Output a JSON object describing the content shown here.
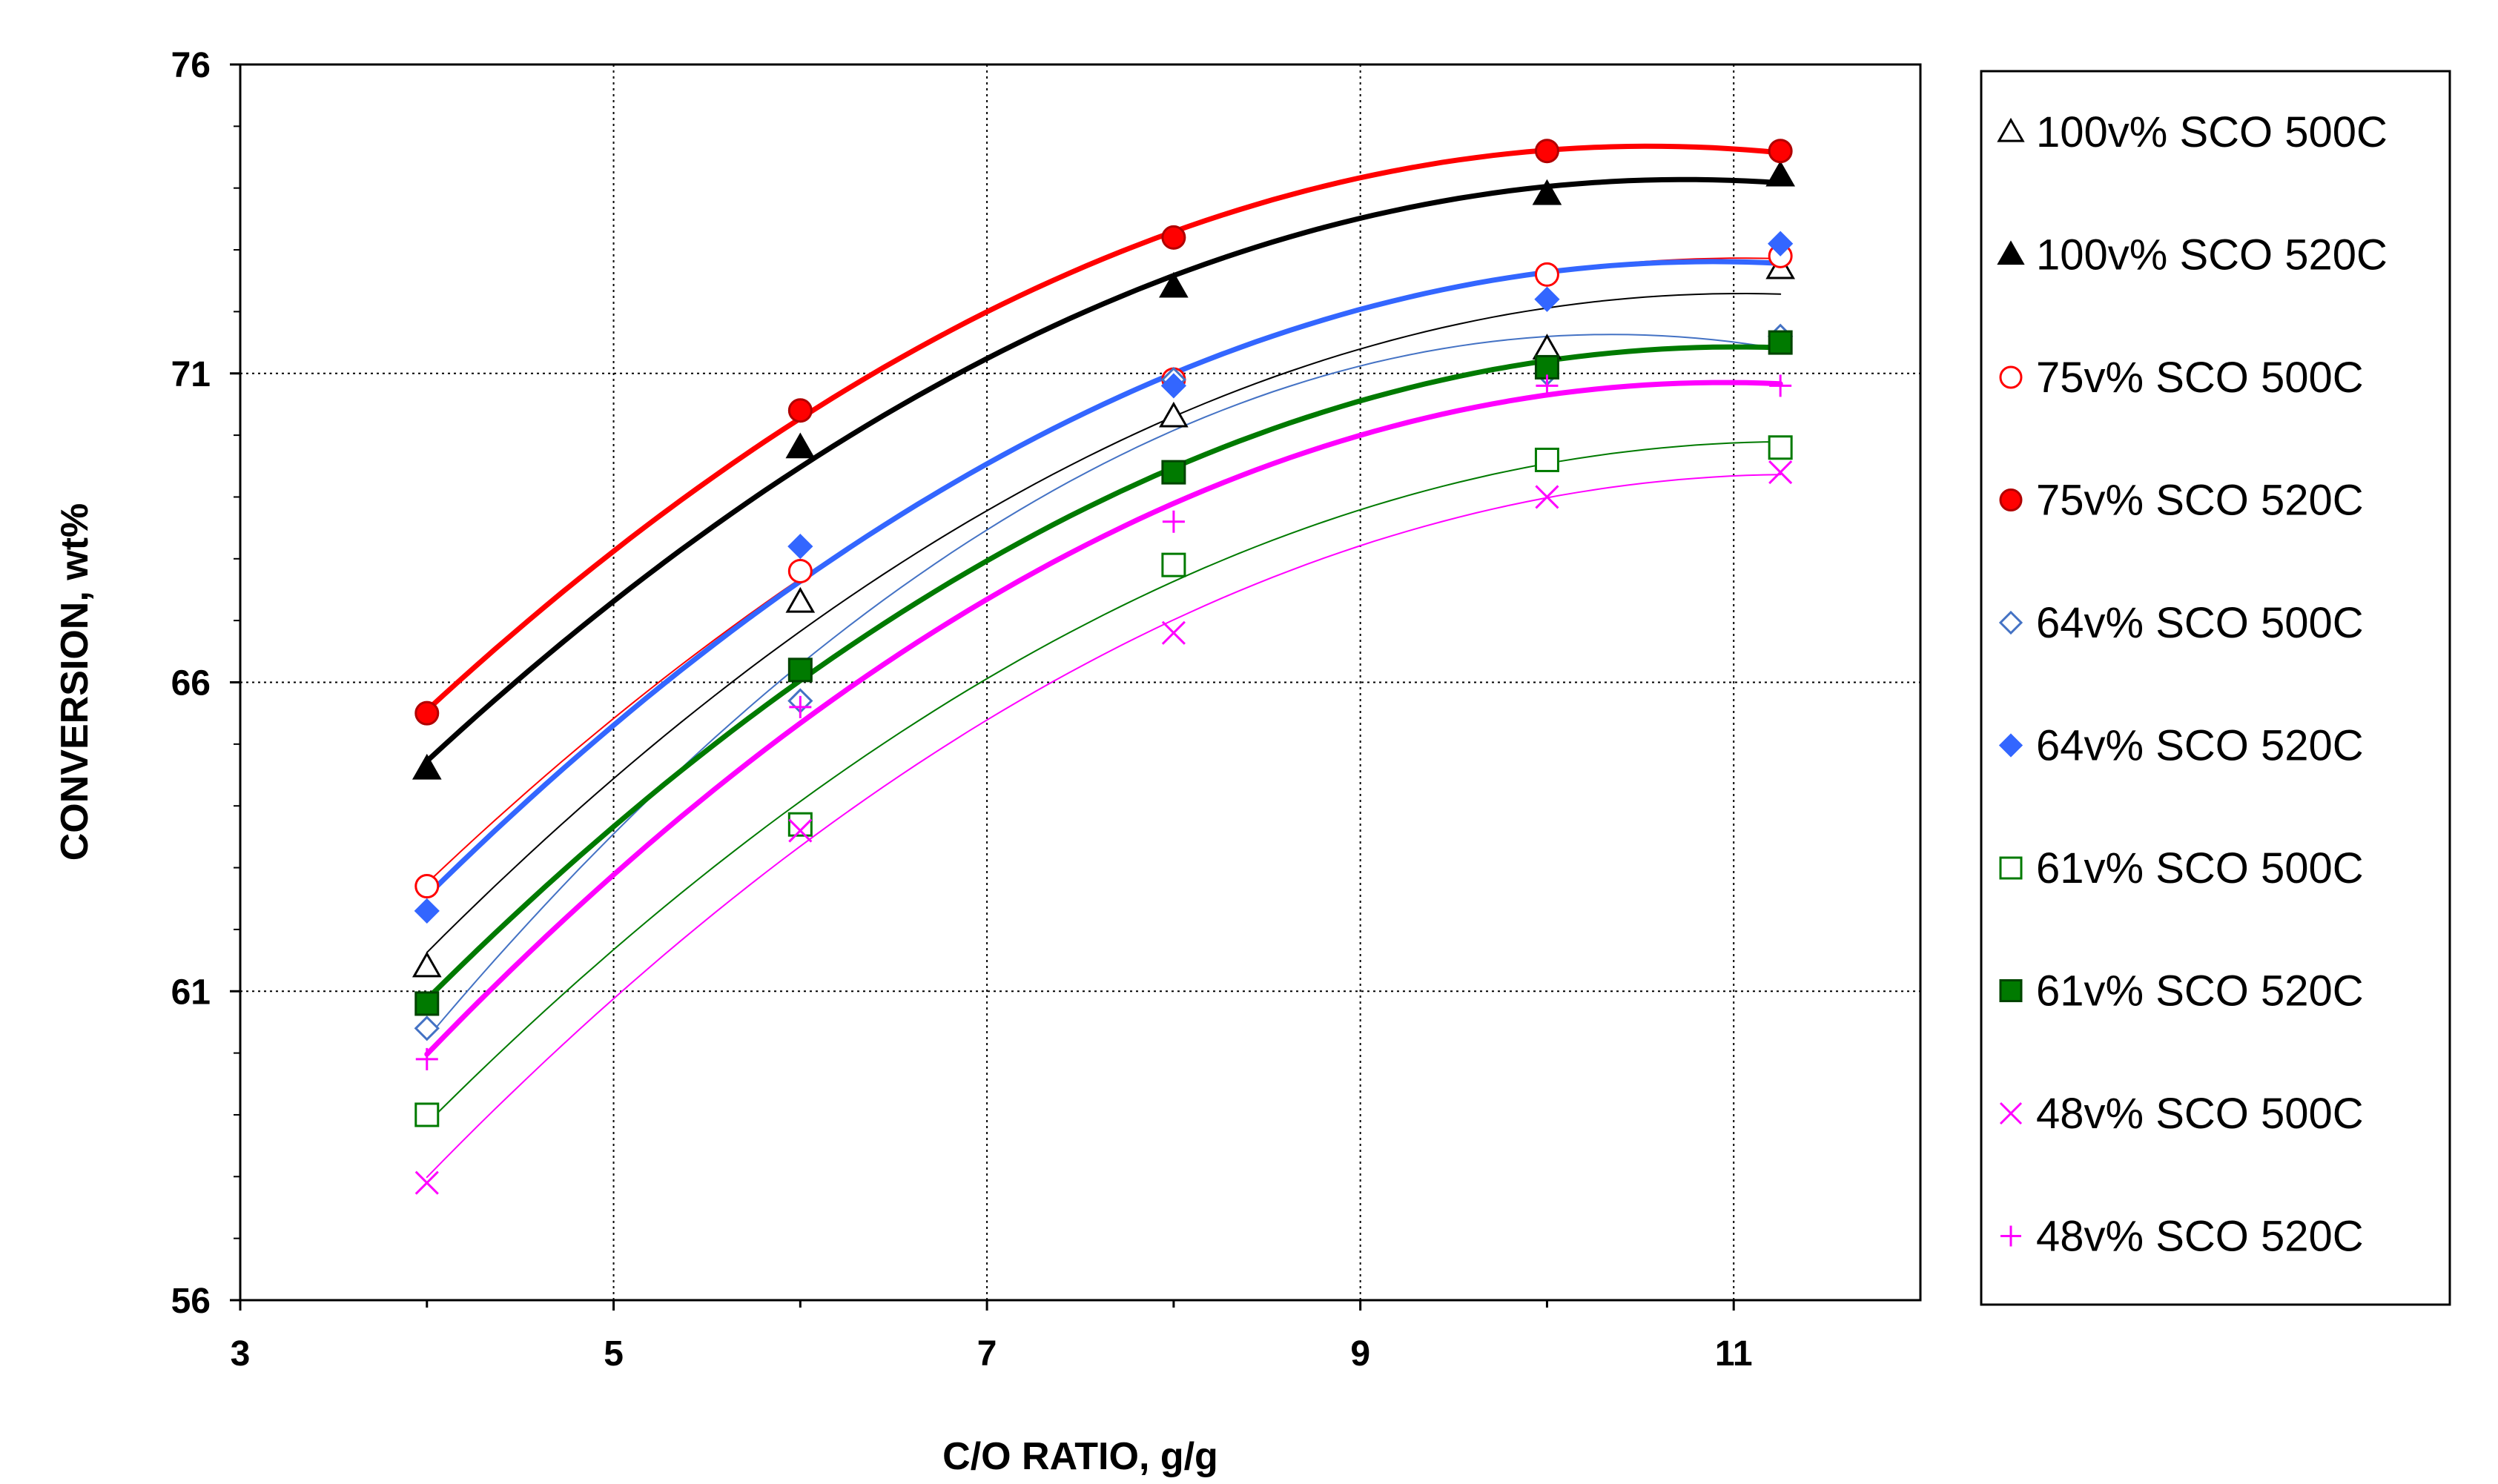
{
  "chart_data": {
    "type": "scatter",
    "title": "",
    "xlabel": "C/O RATIO, g/g",
    "ylabel": "CONVERSION, wt%",
    "xlim": [
      3,
      12
    ],
    "ylim": [
      56,
      76
    ],
    "xticks": [
      3,
      5,
      7,
      9,
      11
    ],
    "yticks": [
      56,
      61,
      66,
      71,
      76
    ],
    "grid": true,
    "legend_position": "right",
    "series": [
      {
        "name": "100v% SCO 500C",
        "marker": "triangle-open",
        "color": "#000000",
        "trend_width": 2,
        "x": [
          4.0,
          6.0,
          8.0,
          10.0,
          11.25
        ],
        "y": [
          61.4,
          67.3,
          70.3,
          71.4,
          72.7
        ]
      },
      {
        "name": "100v% SCO 520C",
        "marker": "triangle-filled",
        "color": "#000000",
        "trend_width": 7,
        "x": [
          4.0,
          6.0,
          8.0,
          10.0,
          11.25
        ],
        "y": [
          64.6,
          69.8,
          72.4,
          73.9,
          74.2
        ]
      },
      {
        "name": "75v% SCO 500C",
        "marker": "circle-open",
        "color": "#ff0000",
        "trend_width": 2,
        "x": [
          4.0,
          6.0,
          8.0,
          10.0,
          11.25
        ],
        "y": [
          62.7,
          67.8,
          70.9,
          72.6,
          72.9
        ]
      },
      {
        "name": "75v% SCO 520C",
        "marker": "circle-filled",
        "color": "#ff0000",
        "trend_width": 7,
        "x": [
          4.0,
          6.0,
          8.0,
          10.0,
          11.25
        ],
        "y": [
          65.5,
          70.4,
          73.2,
          74.6,
          74.6
        ]
      },
      {
        "name": "64v% SCO 500C",
        "marker": "diamond-open",
        "color": "#4472c4",
        "trend_width": 2,
        "x": [
          4.0,
          6.0,
          8.0,
          10.0,
          11.25
        ],
        "y": [
          60.4,
          65.7,
          70.9,
          71.0,
          71.6
        ]
      },
      {
        "name": "64v% SCO 520C",
        "marker": "diamond-filled",
        "color": "#3366ff",
        "trend_width": 7,
        "x": [
          4.0,
          6.0,
          8.0,
          10.0,
          11.25
        ],
        "y": [
          62.3,
          68.2,
          70.8,
          72.2,
          73.1
        ]
      },
      {
        "name": "61v% SCO 500C",
        "marker": "square-open",
        "color": "#007a00",
        "trend_width": 2,
        "x": [
          4.0,
          6.0,
          8.0,
          10.0,
          11.25
        ],
        "y": [
          59.0,
          63.7,
          67.9,
          69.6,
          69.8
        ]
      },
      {
        "name": "61v% SCO 520C",
        "marker": "square-filled",
        "color": "#007a00",
        "trend_width": 7,
        "x": [
          4.0,
          6.0,
          8.0,
          10.0,
          11.25
        ],
        "y": [
          60.8,
          66.2,
          69.4,
          71.1,
          71.5
        ]
      },
      {
        "name": "48v% SCO 500C",
        "marker": "x",
        "color": "#ff00ff",
        "trend_width": 2,
        "x": [
          4.0,
          6.0,
          8.0,
          10.0,
          11.25
        ],
        "y": [
          57.9,
          63.6,
          66.8,
          69.0,
          69.4
        ]
      },
      {
        "name": "48v% SCO 520C",
        "marker": "plus",
        "color": "#ff00ff",
        "trend_width": 7,
        "x": [
          4.0,
          6.0,
          8.0,
          10.0,
          11.25
        ],
        "y": [
          59.9,
          65.6,
          68.6,
          70.8,
          70.8
        ]
      }
    ]
  }
}
